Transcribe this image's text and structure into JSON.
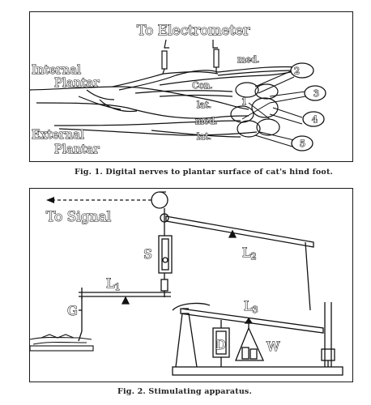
{
  "figure1": {
    "labels": {
      "to_electrometer": "To Electrometer",
      "internal": "Internal",
      "plantar_top": "Plantar",
      "external": "External",
      "plantar_bottom": "Plantar",
      "med_top": "med.",
      "con": "Con.",
      "lat_top": "lat.",
      "med_bottom": "med.",
      "lat_bottom": "lat.",
      "toe_1": "1",
      "toe_2": "2",
      "toe_3": "3",
      "toe_4": "4",
      "toe_5": "5"
    },
    "caption": "Fig. 1.  Digital nerves to plantar surface of cat's hind foot."
  },
  "figure2": {
    "labels": {
      "to_signal": "To Signal",
      "s": "S",
      "l1": "L",
      "l1_sub": "1",
      "l2": "L",
      "l2_sub": "2",
      "l3": "L",
      "l3_sub": "3",
      "g": "G",
      "d": "D",
      "w": "W"
    },
    "caption": "Fig. 2.  Stimulating apparatus."
  }
}
